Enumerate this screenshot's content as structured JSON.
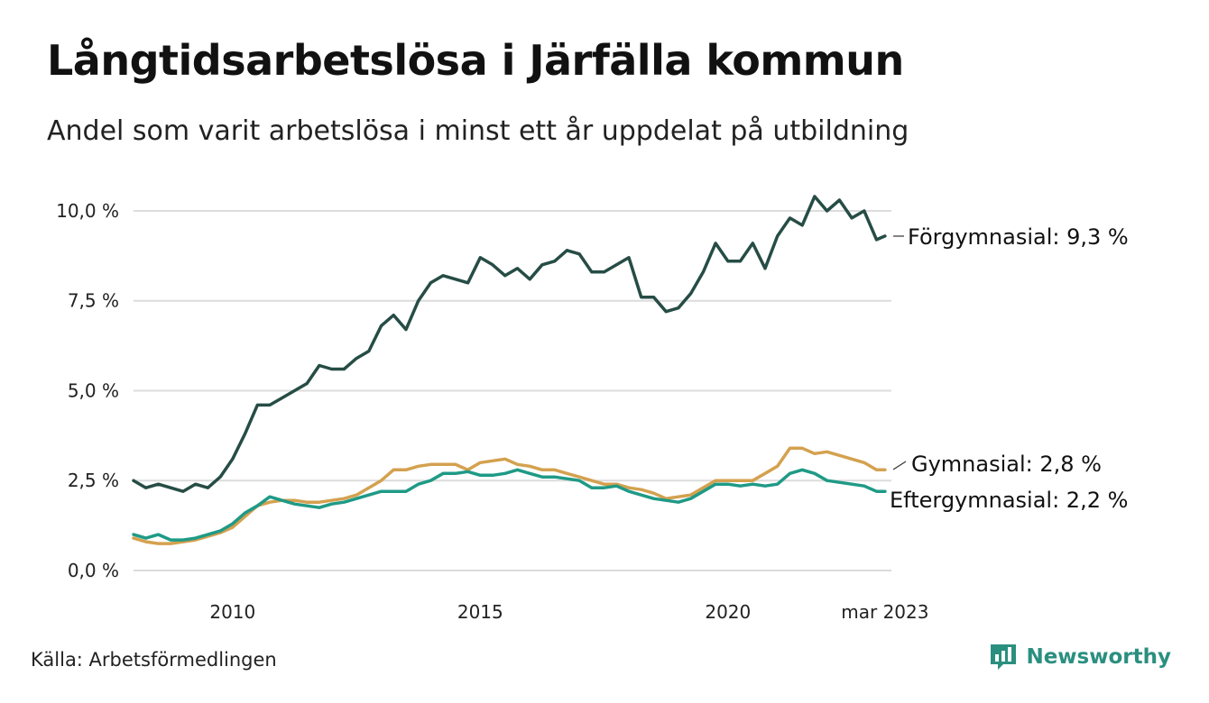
{
  "header": {
    "title": "Långtidsarbetslösa i Järfälla kommun",
    "subtitle": "Andel som varit arbetslösa i minst ett år uppdelat på utbildning"
  },
  "footer": {
    "source": "Källa: Arbetsförmedlingen",
    "brand": "Newsworthy",
    "brand_icon": "bar-chart-bubble-icon"
  },
  "chart_data": {
    "type": "line",
    "title": "Långtidsarbetslösa i Järfälla kommun",
    "subtitle": "Andel som varit arbetslösa i minst ett år uppdelat på utbildning",
    "xlabel": "",
    "ylabel": "",
    "x_ticks": [
      {
        "value": 2010,
        "label": "2010"
      },
      {
        "value": 2015,
        "label": "2015"
      },
      {
        "value": 2020,
        "label": "2020"
      },
      {
        "value": 2023.17,
        "label": "mar 2023"
      }
    ],
    "y_ticks": [
      {
        "value": 0,
        "label": "0,0 %"
      },
      {
        "value": 2.5,
        "label": "2,5 %"
      },
      {
        "value": 5,
        "label": "5,0 %"
      },
      {
        "value": 7.5,
        "label": "7,5 %"
      },
      {
        "value": 10,
        "label": "10,0 %"
      }
    ],
    "xlim": [
      2008.0,
      2023.3
    ],
    "ylim": [
      0,
      10.5
    ],
    "grid": "horizontal",
    "series": [
      {
        "name": "Förgymnasial",
        "end_label": "Förgymnasial: 9,3 %",
        "color": "#264d45",
        "points": [
          [
            2008.0,
            2.5
          ],
          [
            2008.25,
            2.3
          ],
          [
            2008.5,
            2.4
          ],
          [
            2008.75,
            2.3
          ],
          [
            2009.0,
            2.2
          ],
          [
            2009.25,
            2.4
          ],
          [
            2009.5,
            2.3
          ],
          [
            2009.75,
            2.6
          ],
          [
            2010.0,
            3.1
          ],
          [
            2010.25,
            3.8
          ],
          [
            2010.5,
            4.6
          ],
          [
            2010.75,
            4.6
          ],
          [
            2011.0,
            4.8
          ],
          [
            2011.25,
            5.0
          ],
          [
            2011.5,
            5.2
          ],
          [
            2011.75,
            5.7
          ],
          [
            2012.0,
            5.6
          ],
          [
            2012.25,
            5.6
          ],
          [
            2012.5,
            5.9
          ],
          [
            2012.75,
            6.1
          ],
          [
            2013.0,
            6.8
          ],
          [
            2013.25,
            7.1
          ],
          [
            2013.5,
            6.7
          ],
          [
            2013.75,
            7.5
          ],
          [
            2014.0,
            8.0
          ],
          [
            2014.25,
            8.2
          ],
          [
            2014.5,
            8.1
          ],
          [
            2014.75,
            8.0
          ],
          [
            2015.0,
            8.7
          ],
          [
            2015.25,
            8.5
          ],
          [
            2015.5,
            8.2
          ],
          [
            2015.75,
            8.4
          ],
          [
            2016.0,
            8.1
          ],
          [
            2016.25,
            8.5
          ],
          [
            2016.5,
            8.6
          ],
          [
            2016.75,
            8.9
          ],
          [
            2017.0,
            8.8
          ],
          [
            2017.25,
            8.3
          ],
          [
            2017.5,
            8.3
          ],
          [
            2017.75,
            8.5
          ],
          [
            2018.0,
            8.7
          ],
          [
            2018.25,
            7.6
          ],
          [
            2018.5,
            7.6
          ],
          [
            2018.75,
            7.2
          ],
          [
            2019.0,
            7.3
          ],
          [
            2019.25,
            7.7
          ],
          [
            2019.5,
            8.3
          ],
          [
            2019.75,
            9.1
          ],
          [
            2020.0,
            8.6
          ],
          [
            2020.25,
            8.6
          ],
          [
            2020.5,
            9.1
          ],
          [
            2020.75,
            8.4
          ],
          [
            2021.0,
            9.3
          ],
          [
            2021.25,
            9.8
          ],
          [
            2021.5,
            9.6
          ],
          [
            2021.75,
            10.4
          ],
          [
            2022.0,
            10.0
          ],
          [
            2022.25,
            10.3
          ],
          [
            2022.5,
            9.8
          ],
          [
            2022.75,
            10.0
          ],
          [
            2023.0,
            9.2
          ],
          [
            2023.17,
            9.3
          ]
        ]
      },
      {
        "name": "Gymnasial",
        "end_label": "Gymnasial: 2,8 %",
        "color": "#d4a14f",
        "points": [
          [
            2008.0,
            0.9
          ],
          [
            2008.25,
            0.8
          ],
          [
            2008.5,
            0.75
          ],
          [
            2008.75,
            0.75
          ],
          [
            2009.0,
            0.8
          ],
          [
            2009.25,
            0.85
          ],
          [
            2009.5,
            0.95
          ],
          [
            2009.75,
            1.05
          ],
          [
            2010.0,
            1.2
          ],
          [
            2010.25,
            1.5
          ],
          [
            2010.5,
            1.8
          ],
          [
            2010.75,
            1.9
          ],
          [
            2011.0,
            1.95
          ],
          [
            2011.25,
            1.95
          ],
          [
            2011.5,
            1.9
          ],
          [
            2011.75,
            1.9
          ],
          [
            2012.0,
            1.95
          ],
          [
            2012.25,
            2.0
          ],
          [
            2012.5,
            2.1
          ],
          [
            2012.75,
            2.3
          ],
          [
            2013.0,
            2.5
          ],
          [
            2013.25,
            2.8
          ],
          [
            2013.5,
            2.8
          ],
          [
            2013.75,
            2.9
          ],
          [
            2014.0,
            2.95
          ],
          [
            2014.25,
            2.95
          ],
          [
            2014.5,
            2.95
          ],
          [
            2014.75,
            2.8
          ],
          [
            2015.0,
            3.0
          ],
          [
            2015.25,
            3.05
          ],
          [
            2015.5,
            3.1
          ],
          [
            2015.75,
            2.95
          ],
          [
            2016.0,
            2.9
          ],
          [
            2016.25,
            2.8
          ],
          [
            2016.5,
            2.8
          ],
          [
            2016.75,
            2.7
          ],
          [
            2017.0,
            2.6
          ],
          [
            2017.25,
            2.5
          ],
          [
            2017.5,
            2.4
          ],
          [
            2017.75,
            2.4
          ],
          [
            2018.0,
            2.3
          ],
          [
            2018.25,
            2.25
          ],
          [
            2018.5,
            2.15
          ],
          [
            2018.75,
            2.0
          ],
          [
            2019.0,
            2.05
          ],
          [
            2019.25,
            2.1
          ],
          [
            2019.5,
            2.3
          ],
          [
            2019.75,
            2.5
          ],
          [
            2020.0,
            2.5
          ],
          [
            2020.25,
            2.5
          ],
          [
            2020.5,
            2.5
          ],
          [
            2020.75,
            2.7
          ],
          [
            2021.0,
            2.9
          ],
          [
            2021.25,
            3.4
          ],
          [
            2021.5,
            3.4
          ],
          [
            2021.75,
            3.25
          ],
          [
            2022.0,
            3.3
          ],
          [
            2022.25,
            3.2
          ],
          [
            2022.5,
            3.1
          ],
          [
            2022.75,
            3.0
          ],
          [
            2023.0,
            2.8
          ],
          [
            2023.17,
            2.8
          ]
        ]
      },
      {
        "name": "Eftergymnasial",
        "end_label": "Eftergymnasial: 2,2 %",
        "color": "#1f9a86",
        "points": [
          [
            2008.0,
            1.0
          ],
          [
            2008.25,
            0.9
          ],
          [
            2008.5,
            1.0
          ],
          [
            2008.75,
            0.85
          ],
          [
            2009.0,
            0.85
          ],
          [
            2009.25,
            0.9
          ],
          [
            2009.5,
            1.0
          ],
          [
            2009.75,
            1.1
          ],
          [
            2010.0,
            1.3
          ],
          [
            2010.25,
            1.6
          ],
          [
            2010.5,
            1.8
          ],
          [
            2010.75,
            2.05
          ],
          [
            2011.0,
            1.95
          ],
          [
            2011.25,
            1.85
          ],
          [
            2011.5,
            1.8
          ],
          [
            2011.75,
            1.75
          ],
          [
            2012.0,
            1.85
          ],
          [
            2012.25,
            1.9
          ],
          [
            2012.5,
            2.0
          ],
          [
            2012.75,
            2.1
          ],
          [
            2013.0,
            2.2
          ],
          [
            2013.25,
            2.2
          ],
          [
            2013.5,
            2.2
          ],
          [
            2013.75,
            2.4
          ],
          [
            2014.0,
            2.5
          ],
          [
            2014.25,
            2.7
          ],
          [
            2014.5,
            2.7
          ],
          [
            2014.75,
            2.75
          ],
          [
            2015.0,
            2.65
          ],
          [
            2015.25,
            2.65
          ],
          [
            2015.5,
            2.7
          ],
          [
            2015.75,
            2.8
          ],
          [
            2016.0,
            2.7
          ],
          [
            2016.25,
            2.6
          ],
          [
            2016.5,
            2.6
          ],
          [
            2016.75,
            2.55
          ],
          [
            2017.0,
            2.5
          ],
          [
            2017.25,
            2.3
          ],
          [
            2017.5,
            2.3
          ],
          [
            2017.75,
            2.35
          ],
          [
            2018.0,
            2.2
          ],
          [
            2018.25,
            2.1
          ],
          [
            2018.5,
            2.0
          ],
          [
            2018.75,
            1.95
          ],
          [
            2019.0,
            1.9
          ],
          [
            2019.25,
            2.0
          ],
          [
            2019.5,
            2.2
          ],
          [
            2019.75,
            2.4
          ],
          [
            2020.0,
            2.4
          ],
          [
            2020.25,
            2.35
          ],
          [
            2020.5,
            2.4
          ],
          [
            2020.75,
            2.35
          ],
          [
            2021.0,
            2.4
          ],
          [
            2021.25,
            2.7
          ],
          [
            2021.5,
            2.8
          ],
          [
            2021.75,
            2.7
          ],
          [
            2022.0,
            2.5
          ],
          [
            2022.25,
            2.45
          ],
          [
            2022.5,
            2.4
          ],
          [
            2022.75,
            2.35
          ],
          [
            2023.0,
            2.2
          ],
          [
            2023.17,
            2.2
          ]
        ]
      }
    ]
  }
}
